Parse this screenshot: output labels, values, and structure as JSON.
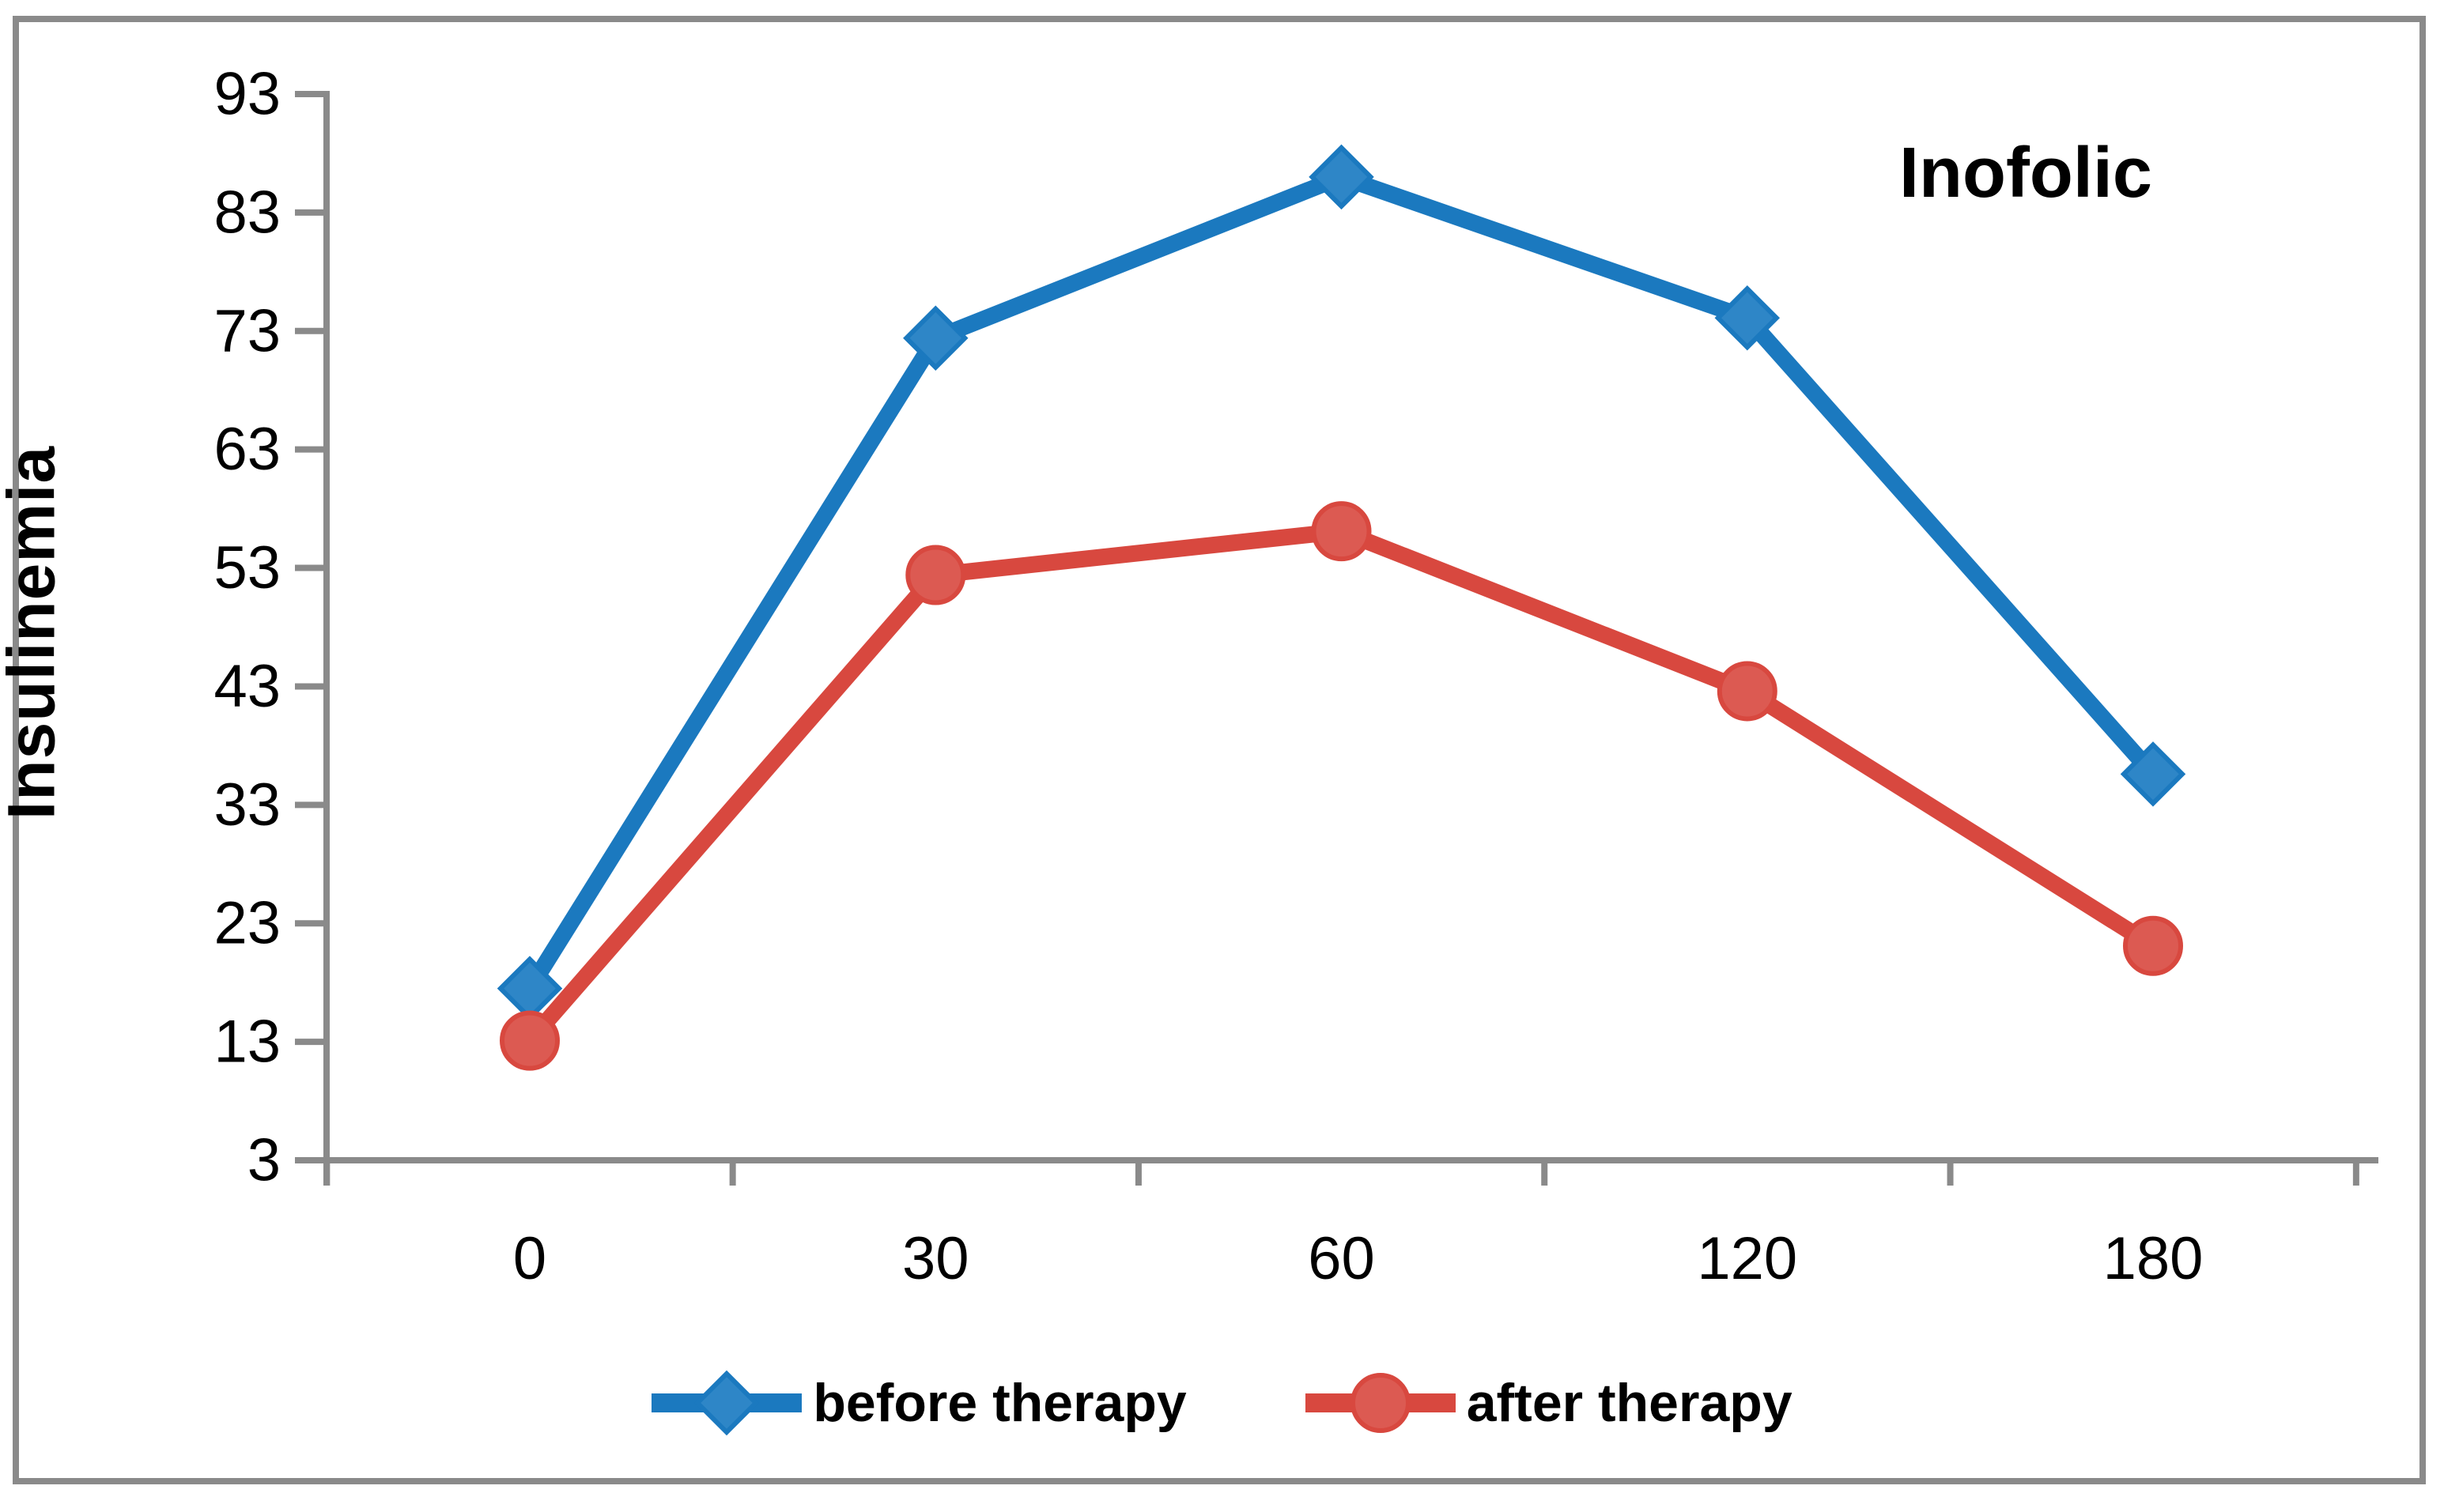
{
  "chart_data": {
    "type": "line",
    "annotation": "Inofolic",
    "ylabel": "Insulinemia",
    "xlabel": "",
    "categories": [
      "0",
      "30",
      "60",
      "120",
      "180"
    ],
    "yticks": [
      3,
      13,
      23,
      33,
      43,
      53,
      63,
      73,
      83,
      93
    ],
    "ylim": [
      3,
      93
    ],
    "grid": false,
    "legend_position": "bottom-center",
    "series": [
      {
        "name": "before therapy",
        "marker": "diamond",
        "color": "#1b79bf",
        "marker_fill": "#2e86c7",
        "values": [
          17.5,
          72.4,
          86.0,
          74.1,
          35.6
        ]
      },
      {
        "name": "after therapy",
        "marker": "circle",
        "color": "#d8483f",
        "marker_fill": "#dc5a52",
        "values": [
          13.1,
          52.4,
          56.1,
          42.6,
          21.1
        ]
      }
    ]
  },
  "colors": {
    "axis": "#8a8a8a",
    "frame_border": "#8a8a8a",
    "text": "#000000",
    "background": "#ffffff"
  }
}
